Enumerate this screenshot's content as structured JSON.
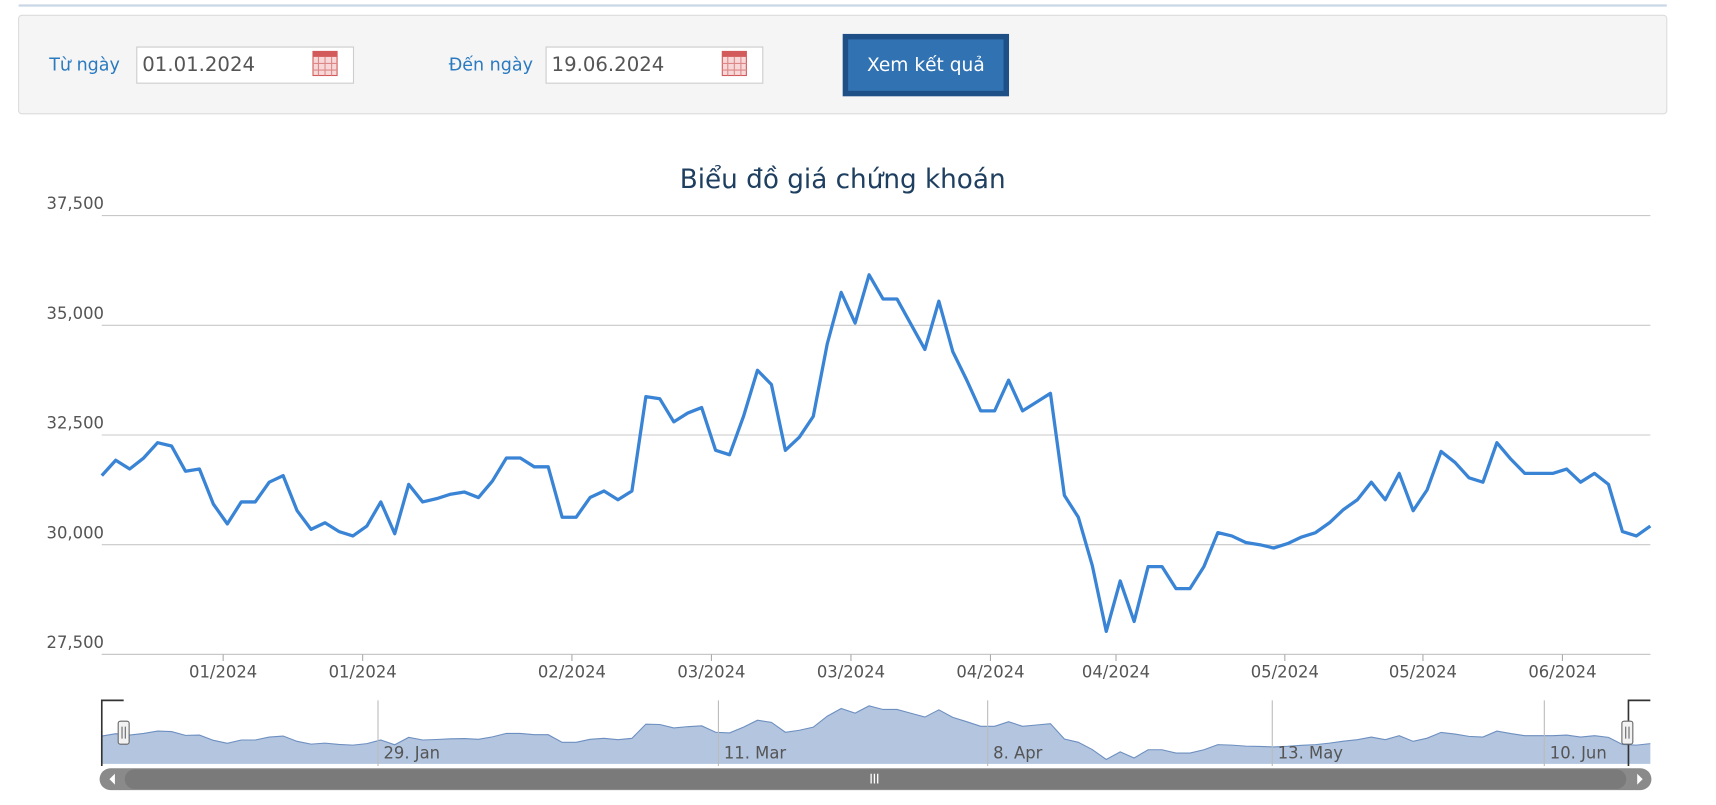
{
  "form": {
    "from_label": "Từ ngày",
    "from_value": "01.01.2024",
    "to_label": "Đến ngày",
    "to_value": "19.06.2024",
    "button": "Xem kết quả"
  },
  "chart_data": {
    "type": "line",
    "title": "Biểu đồ giá chứng khoán",
    "color": "#3a84d6",
    "values": [
      31575,
      31925,
      31725,
      31975,
      32325,
      32250,
      31675,
      31725,
      30925,
      30475,
      30975,
      30975,
      31425,
      31575,
      30775,
      30350,
      30500,
      30300,
      30200,
      30425,
      30975,
      30250,
      31375,
      30975,
      31050,
      31150,
      31200,
      31075,
      31450,
      31975,
      31975,
      31775,
      31775,
      30625,
      30625,
      31075,
      31225,
      31025,
      31225,
      33375,
      33325,
      32800,
      33000,
      33125,
      32150,
      32050,
      32925,
      33975,
      33650,
      32150,
      32450,
      32925,
      34575,
      35750,
      35050,
      36150,
      35600,
      35600,
      35025,
      34450,
      35550,
      34400,
      33750,
      33050,
      33050,
      33750,
      33050,
      33250,
      33450,
      31125,
      30625,
      29525,
      28025,
      29175,
      28250,
      29500,
      29500,
      29000,
      29000,
      29500,
      30275,
      30200,
      30050,
      30000,
      29925,
      30025,
      30175,
      30275,
      30500,
      30800,
      31025,
      31425,
      31025,
      31625,
      30775,
      31250,
      32125,
      31875,
      31525,
      31425,
      32325,
      31950,
      31625,
      31625,
      31625,
      31725,
      31425,
      31625,
      31375,
      30300,
      30200,
      30425
    ],
    "xlim": [
      0,
      111
    ],
    "ylim": [
      27500,
      37500
    ],
    "yticks": [
      {
        "value": 27500,
        "label": "27,500"
      },
      {
        "value": 30000,
        "label": "30,000"
      },
      {
        "value": 32500,
        "label": "32,500"
      },
      {
        "value": 35000,
        "label": "35,000"
      },
      {
        "value": 37500,
        "label": "37,500"
      }
    ],
    "xticks": [
      {
        "value": 8.7,
        "label": "01/2024"
      },
      {
        "value": 18.7,
        "label": "01/2024"
      },
      {
        "value": 33.7,
        "label": "02/2024"
      },
      {
        "value": 43.7,
        "label": "03/2024"
      },
      {
        "value": 53.7,
        "label": "03/2024"
      },
      {
        "value": 63.7,
        "label": "04/2024"
      },
      {
        "value": 72.7,
        "label": "04/2024"
      },
      {
        "value": 84.8,
        "label": "05/2024"
      },
      {
        "value": 94.7,
        "label": "05/2024"
      },
      {
        "value": 104.7,
        "label": "06/2024"
      }
    ],
    "navigator_ticks": [
      {
        "value": 19.8,
        "label": "29. Jan"
      },
      {
        "value": 44.2,
        "label": "11. Mar"
      },
      {
        "value": 63.5,
        "label": "8. Apr"
      },
      {
        "value": 83.9,
        "label": "13. May"
      },
      {
        "value": 103.4,
        "label": "10. Jun"
      }
    ],
    "grid": true
  }
}
